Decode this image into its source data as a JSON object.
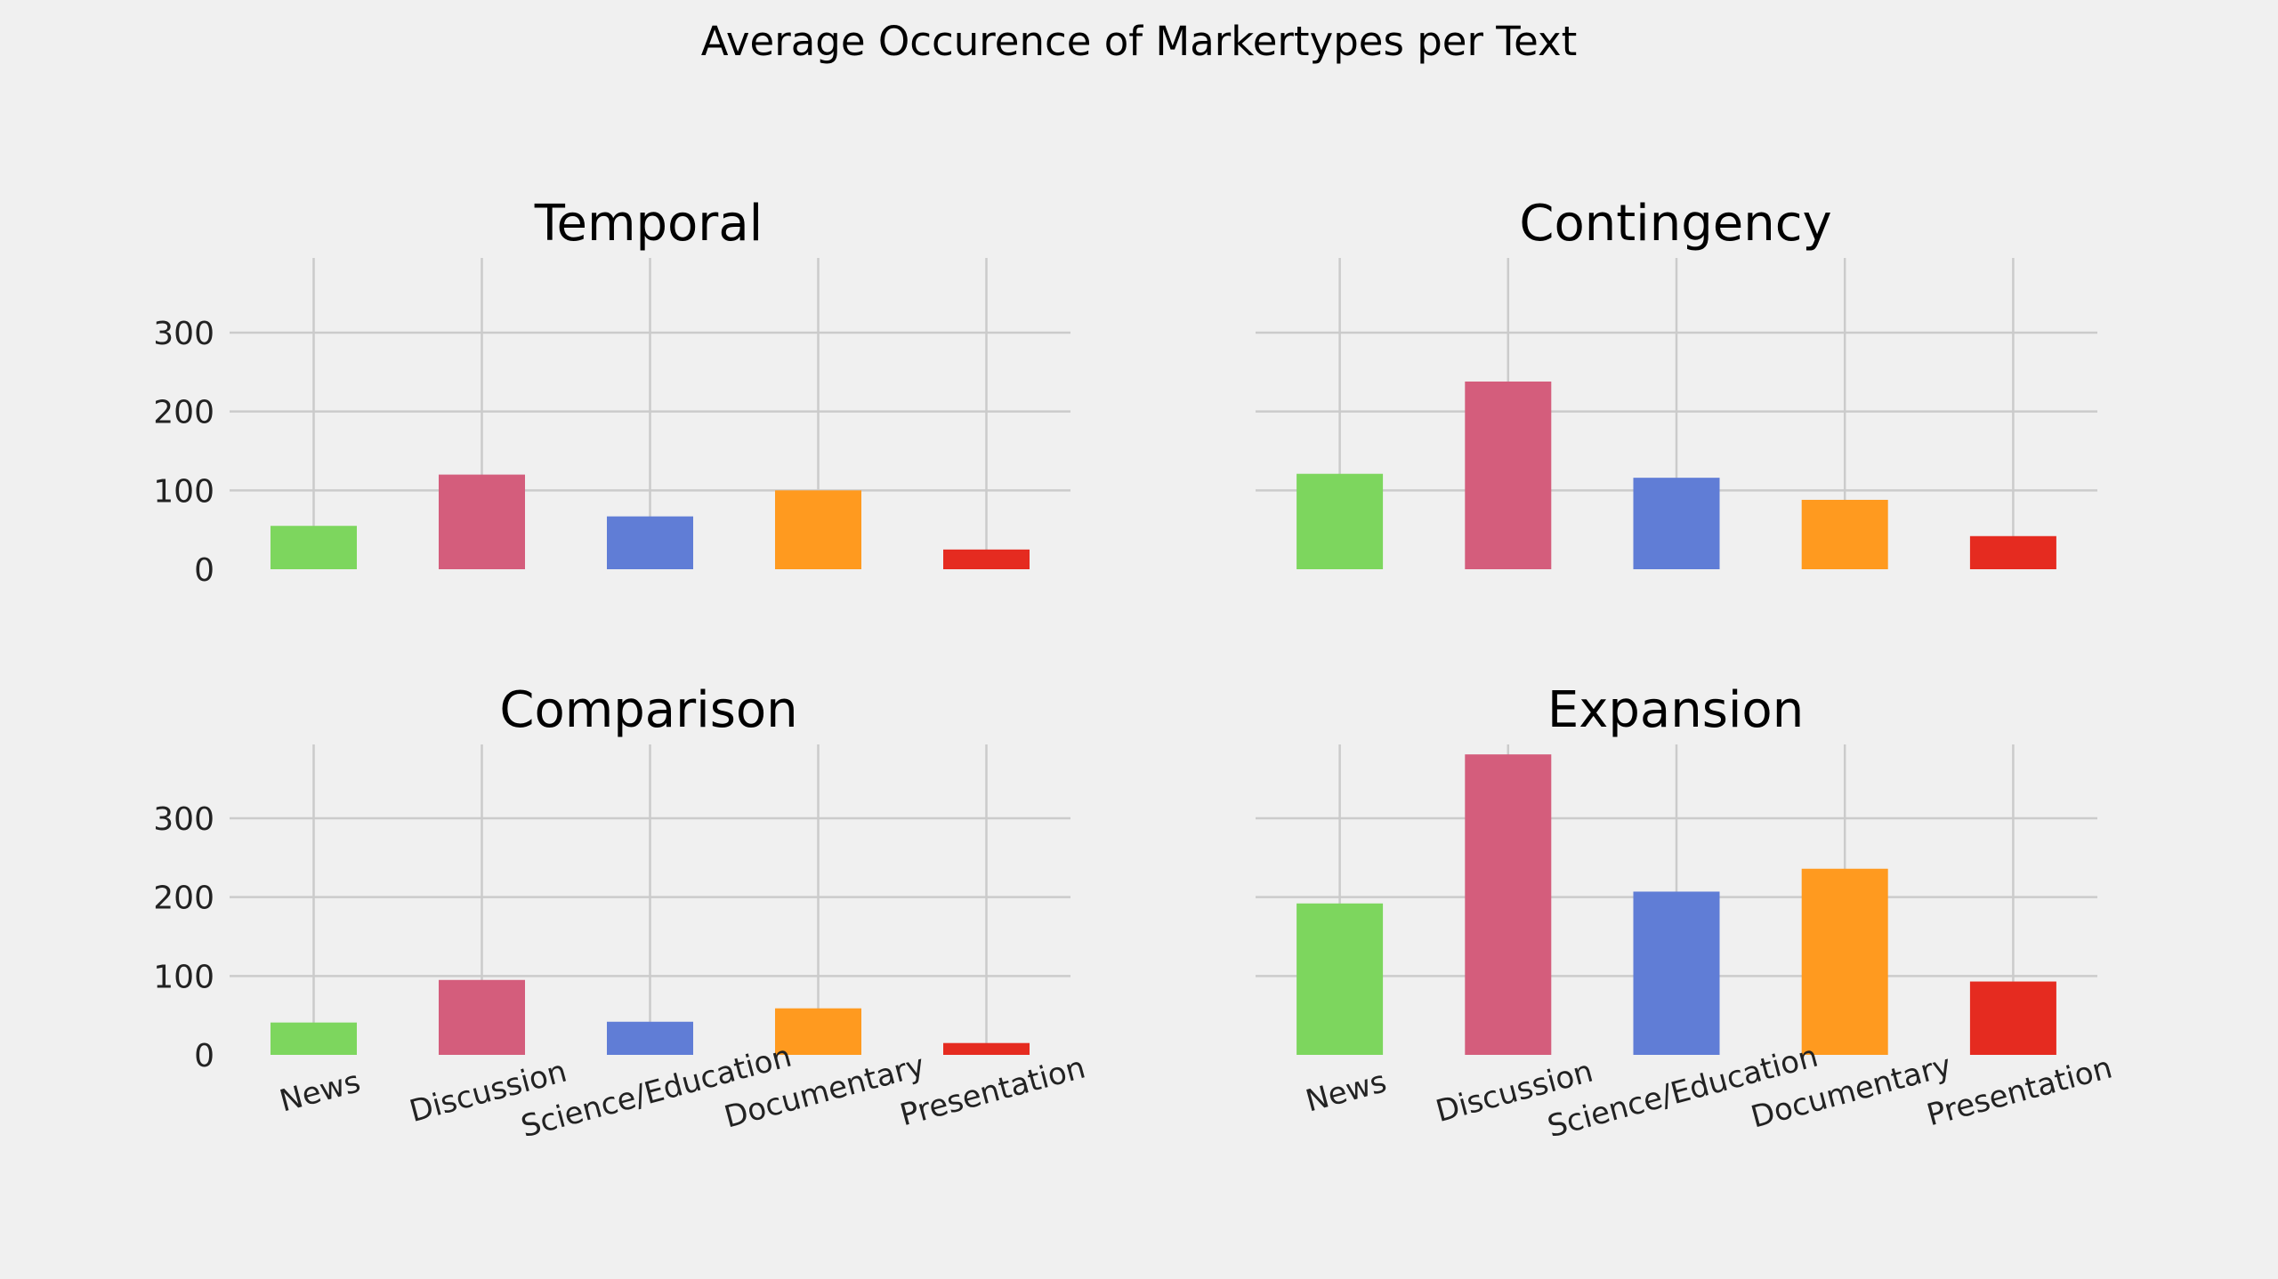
{
  "chart_data": {
    "type": "bar",
    "title": "Average Occurence of Markertypes per Text",
    "categories": [
      "News",
      "Discussion",
      "Science/Education",
      "Documentary",
      "Presentation"
    ],
    "ylim": [
      0,
      390
    ],
    "yticks": [
      0,
      100,
      200,
      300
    ],
    "grid": true,
    "colors": [
      "#7dd65e",
      "#d45d7c",
      "#607dd6",
      "#ff9a1f",
      "#e52b20"
    ],
    "panels": [
      {
        "title": "Temporal",
        "values": [
          55,
          120,
          67,
          100,
          25
        ]
      },
      {
        "title": "Contingency",
        "values": [
          121,
          238,
          116,
          88,
          42
        ]
      },
      {
        "title": "Comparison",
        "values": [
          41,
          95,
          42,
          59,
          15
        ]
      },
      {
        "title": "Expansion",
        "values": [
          192,
          381,
          207,
          236,
          93
        ]
      }
    ]
  }
}
